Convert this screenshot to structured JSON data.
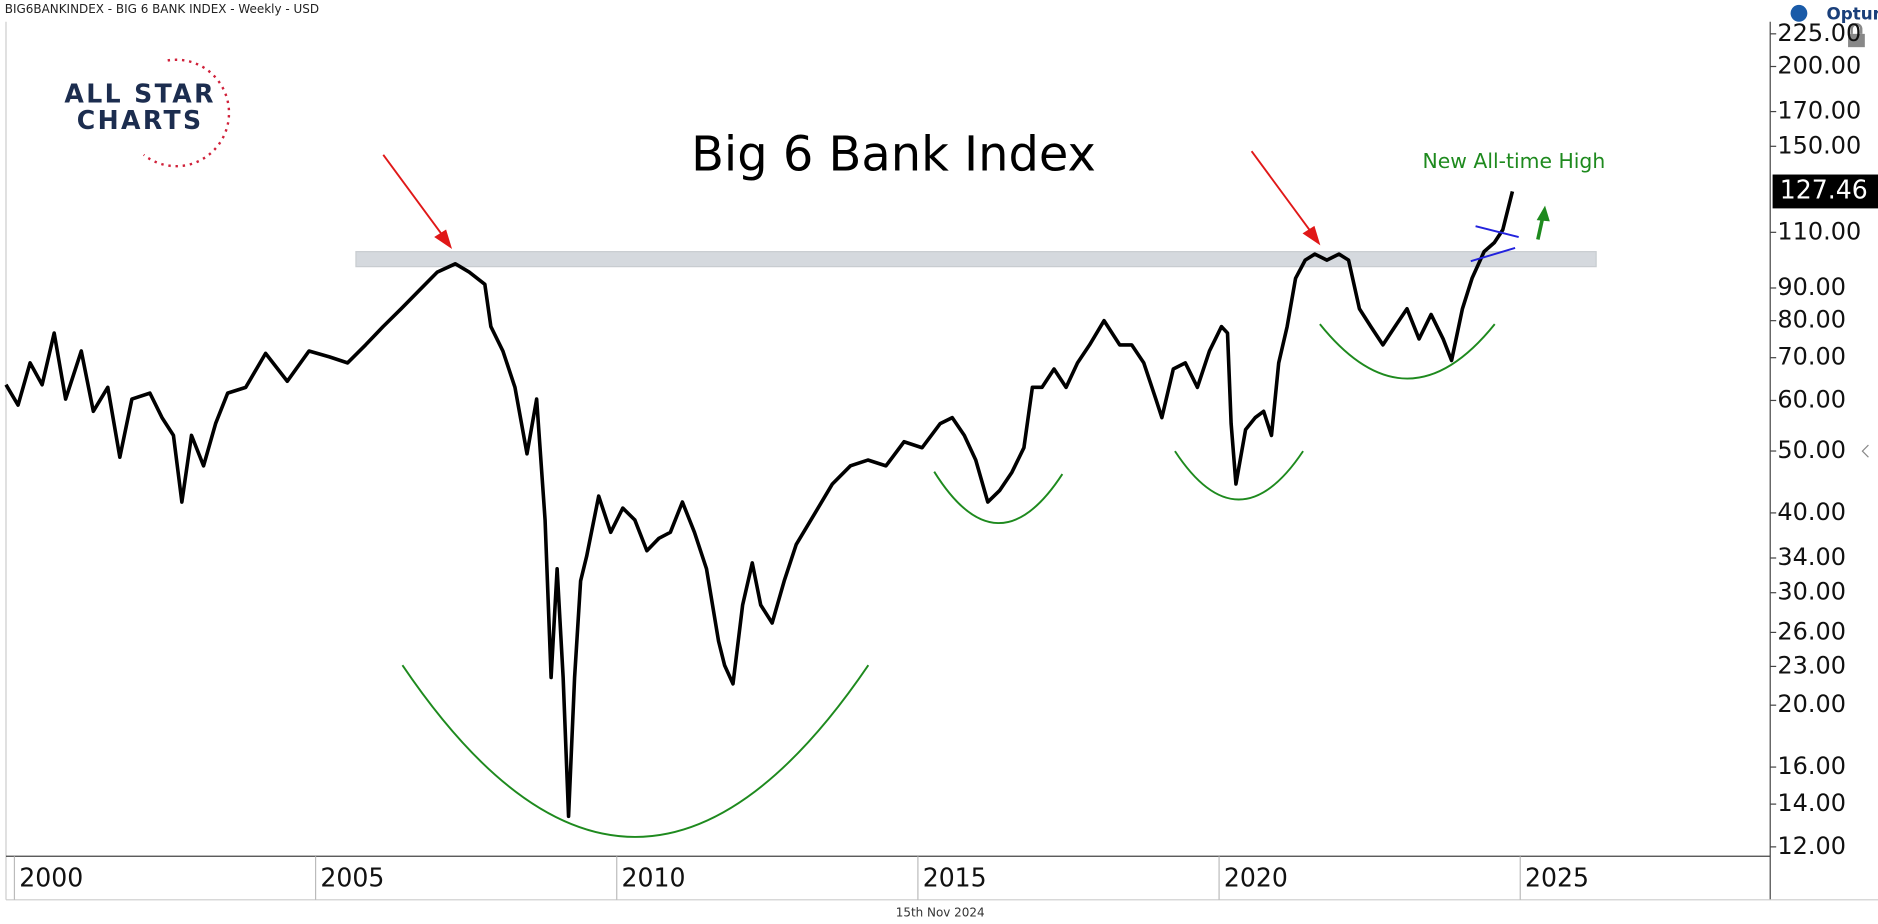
{
  "header": "BIG6BANKINDEX - BIG 6 BANK INDEX - Weekly - USD",
  "footer": "15th Nov 2024",
  "brand": "Optuma",
  "logo": [
    "ALL STAR",
    "CHARTS"
  ],
  "chart_data": {
    "type": "line",
    "title": "Big 6 Bank Index",
    "annotation": "New All-time High",
    "color": "#000000",
    "log_scale": true,
    "x": [
      1999.86,
      2000.06,
      2000.26,
      2000.46,
      2000.66,
      2000.85,
      2001.11,
      2001.31,
      2001.55,
      2001.75,
      2001.95,
      2002.25,
      2002.45,
      2002.64,
      2002.78,
      2002.94,
      2003.14,
      2003.34,
      2003.54,
      2003.84,
      2004.17,
      2004.53,
      2004.89,
      2005.23,
      2005.53,
      2005.83,
      2006.12,
      2006.42,
      2006.72,
      2007.02,
      2007.32,
      2007.55,
      2007.81,
      2007.91,
      2008.11,
      2008.31,
      2008.51,
      2008.67,
      2008.81,
      2008.91,
      2009.01,
      2009.11,
      2009.2,
      2009.3,
      2009.4,
      2009.5,
      2009.7,
      2009.9,
      2010.1,
      2010.3,
      2010.5,
      2010.7,
      2010.89,
      2011.09,
      2011.29,
      2011.49,
      2011.69,
      2011.79,
      2011.93,
      2012.09,
      2012.25,
      2012.39,
      2012.58,
      2012.78,
      2012.98,
      2013.28,
      2013.58,
      2013.88,
      2014.17,
      2014.47,
      2014.77,
      2015.07,
      2015.37,
      2015.57,
      2015.77,
      2015.96,
      2016.16,
      2016.36,
      2016.56,
      2016.76,
      2016.9,
      2017.06,
      2017.26,
      2017.46,
      2017.65,
      2017.85,
      2018.09,
      2018.35,
      2018.55,
      2018.75,
      2018.95,
      2019.05,
      2019.24,
      2019.44,
      2019.64,
      2019.84,
      2020.04,
      2020.14,
      2020.2,
      2020.28,
      2020.44,
      2020.6,
      2020.74,
      2020.87,
      2020.99,
      2021.13,
      2021.27,
      2021.43,
      2021.59,
      2021.79,
      2021.99,
      2022.15,
      2022.33,
      2022.52,
      2022.72,
      2022.92,
      2023.12,
      2023.32,
      2023.52,
      2023.72,
      2023.86,
      2024.04,
      2024.2,
      2024.4,
      2024.57,
      2024.71,
      2024.87
    ],
    "values": [
      63.5,
      59,
      68.7,
      63.5,
      76.5,
      60.3,
      71.7,
      57.7,
      62.9,
      48.9,
      60.3,
      61.6,
      56.4,
      52.9,
      41.6,
      52.9,
      47.4,
      55.2,
      61.6,
      62.9,
      71.1,
      64.3,
      71.7,
      70.2,
      68.7,
      73.3,
      78.3,
      83.5,
      89.2,
      95.3,
      98.2,
      95.3,
      91.2,
      78.3,
      71.7,
      62.9,
      49.5,
      60.3,
      39,
      22.1,
      32.7,
      22.1,
      13.4,
      22.1,
      31.3,
      34.2,
      42.5,
      37.3,
      40.7,
      39,
      34.9,
      36.5,
      37.3,
      41.6,
      37.3,
      32.7,
      25.2,
      23.1,
      21.6,
      28.7,
      33.4,
      28.7,
      26.9,
      31.3,
      35.7,
      39.8,
      44.4,
      47.4,
      48.4,
      47.4,
      51.7,
      50.6,
      55.2,
      56.4,
      52.9,
      48.4,
      41.6,
      43.4,
      46.3,
      50.6,
      62.9,
      62.9,
      67.2,
      62.9,
      68.7,
      73.3,
      80,
      73.3,
      73.3,
      68.7,
      60.3,
      56.4,
      67.2,
      68.7,
      62.9,
      71.7,
      78.3,
      76.5,
      55.2,
      44.4,
      54,
      56.4,
      57.7,
      52.9,
      68.7,
      78.3,
      93.2,
      99.5,
      101.7,
      99.5,
      101.7,
      99.5,
      83.5,
      78.3,
      73.3,
      78.3,
      83.5,
      74.9,
      81.8,
      74.9,
      69.3,
      83.5,
      93.2,
      102.6,
      106,
      111,
      127.46
    ],
    "resistance_band": [
      97.2,
      102.6
    ],
    "resistance_x": [
      2005.67,
      2026.26
    ],
    "xlim": [
      1999.86,
      2029.15
    ],
    "xticks": [
      2000,
      2005,
      2010,
      2015,
      2020,
      2025
    ],
    "ylim": [
      11.6,
      235
    ],
    "yticks": [
      {
        "value": 225,
        "label": "225.00"
      },
      {
        "value": 200,
        "label": "200.00"
      },
      {
        "value": 170,
        "label": "170.00"
      },
      {
        "value": 150,
        "label": "150.00"
      },
      {
        "value": 110,
        "label": "110.00"
      },
      {
        "value": 90,
        "label": "90.00"
      },
      {
        "value": 80,
        "label": "80.00"
      },
      {
        "value": 70,
        "label": "70.00"
      },
      {
        "value": 60,
        "label": "60.00"
      },
      {
        "value": 50,
        "label": "50.00"
      },
      {
        "value": 40,
        "label": "40.00"
      },
      {
        "value": 34,
        "label": "34.00"
      },
      {
        "value": 30,
        "label": "30.00"
      },
      {
        "value": 26,
        "label": "26.00"
      },
      {
        "value": 23,
        "label": "23.00"
      },
      {
        "value": 20,
        "label": "20.00"
      },
      {
        "value": 16,
        "label": "16.00"
      },
      {
        "value": 14,
        "label": "14.00"
      },
      {
        "value": 12,
        "label": "12.00"
      }
    ]
  }
}
